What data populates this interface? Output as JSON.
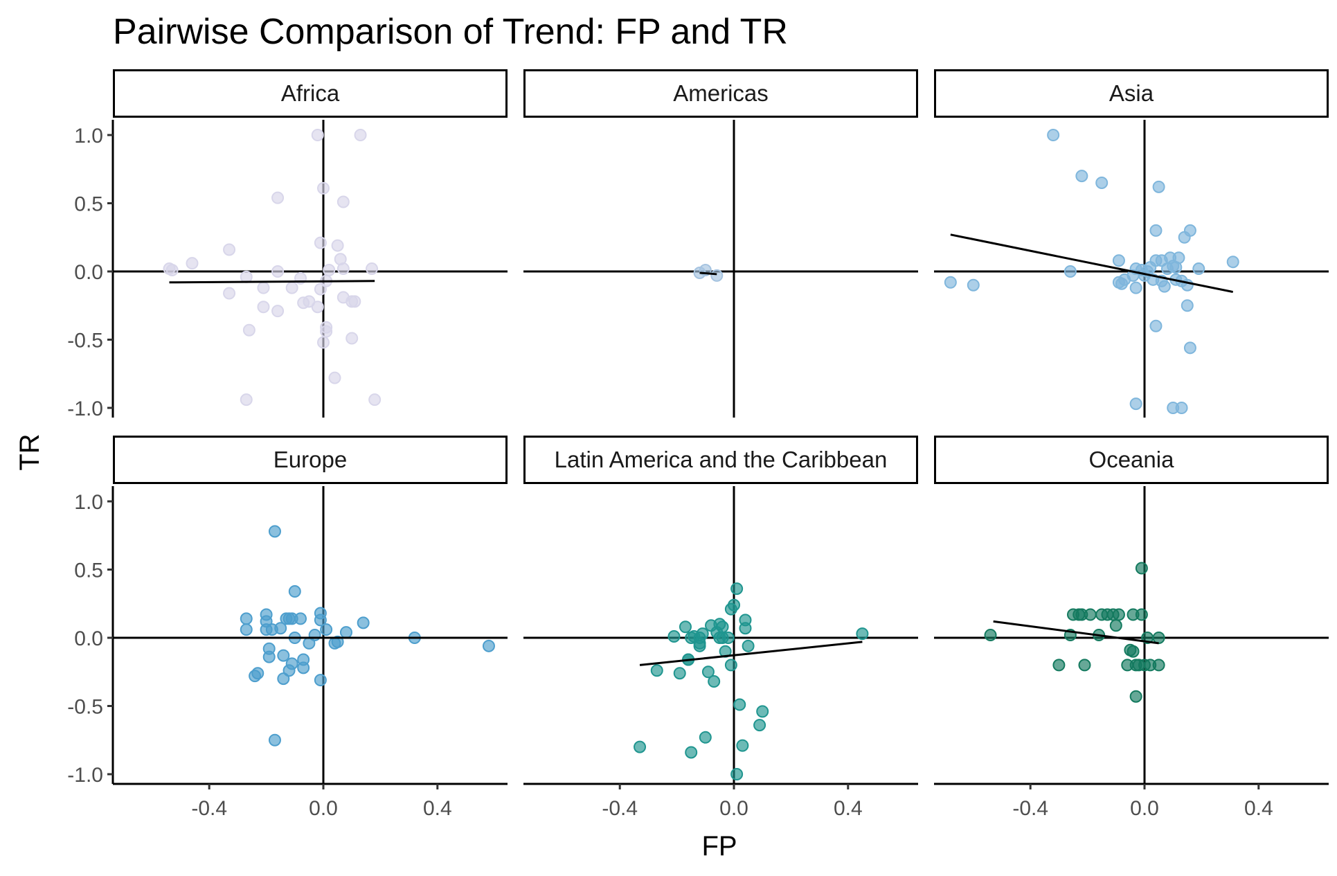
{
  "chart_data": {
    "type": "scatter",
    "title": "Pairwise Comparison of Trend: FP and TR",
    "xlabel": "FP",
    "ylabel": "TR",
    "xlim": [
      -0.74,
      0.64
    ],
    "ylim": [
      -1.1,
      1.1
    ],
    "x_ticks": [
      {
        "value": -0.4,
        "label": "-0.4"
      },
      {
        "value": 0.0,
        "label": "0.0"
      },
      {
        "value": 0.4,
        "label": "0.4"
      }
    ],
    "y_ticks": [
      {
        "value": 1.0,
        "label": "1.0"
      },
      {
        "value": 0.5,
        "label": "0.5"
      },
      {
        "value": 0.0,
        "label": "0.0"
      },
      {
        "value": -0.5,
        "label": "-0.5"
      },
      {
        "value": -1.0,
        "label": "-1.0"
      }
    ],
    "grid": false,
    "panels": [
      {
        "name": "Africa",
        "color": "#d8d6ea",
        "fit": [
          [
            -0.54,
            -0.08
          ],
          [
            0.18,
            -0.07
          ]
        ],
        "points": [
          [
            -0.54,
            0.02
          ],
          [
            -0.53,
            0.01
          ],
          [
            -0.46,
            0.06
          ],
          [
            -0.33,
            0.16
          ],
          [
            -0.33,
            -0.16
          ],
          [
            -0.27,
            -0.04
          ],
          [
            -0.26,
            -0.43
          ],
          [
            -0.27,
            -0.94
          ],
          [
            -0.21,
            -0.12
          ],
          [
            -0.21,
            -0.26
          ],
          [
            -0.16,
            0.54
          ],
          [
            -0.16,
            0.0
          ],
          [
            -0.16,
            -0.29
          ],
          [
            -0.11,
            -0.12
          ],
          [
            -0.08,
            -0.05
          ],
          [
            -0.07,
            -0.23
          ],
          [
            -0.05,
            -0.22
          ],
          [
            -0.02,
            -0.26
          ],
          [
            -0.02,
            1.0
          ],
          [
            -0.01,
            -0.13
          ],
          [
            -0.01,
            0.21
          ],
          [
            0.0,
            0.61
          ],
          [
            0.0,
            -0.52
          ],
          [
            0.01,
            -0.41
          ],
          [
            0.01,
            -0.44
          ],
          [
            0.01,
            -0.07
          ],
          [
            0.02,
            0.01
          ],
          [
            0.04,
            -0.78
          ],
          [
            0.05,
            0.19
          ],
          [
            0.06,
            0.09
          ],
          [
            0.07,
            0.02
          ],
          [
            0.07,
            -0.19
          ],
          [
            0.07,
            0.51
          ],
          [
            0.1,
            -0.22
          ],
          [
            0.1,
            -0.49
          ],
          [
            0.11,
            -0.22
          ],
          [
            0.13,
            1.0
          ],
          [
            0.17,
            0.02
          ],
          [
            0.18,
            -0.94
          ]
        ]
      },
      {
        "name": "Americas",
        "color": "#a5c3e0",
        "fit": [
          [
            -0.12,
            -0.01
          ],
          [
            -0.06,
            -0.02
          ]
        ],
        "points": [
          [
            -0.12,
            -0.01
          ],
          [
            -0.1,
            0.01
          ],
          [
            -0.06,
            -0.03
          ]
        ]
      },
      {
        "name": "Asia",
        "color": "#7fb6dc",
        "fit": [
          [
            -0.68,
            0.27
          ],
          [
            0.31,
            -0.15
          ]
        ],
        "points": [
          [
            -0.68,
            -0.08
          ],
          [
            -0.6,
            -0.1
          ],
          [
            -0.32,
            1.0
          ],
          [
            -0.26,
            0.0
          ],
          [
            -0.22,
            0.7
          ],
          [
            -0.15,
            0.65
          ],
          [
            -0.09,
            0.08
          ],
          [
            -0.09,
            -0.08
          ],
          [
            -0.08,
            -0.09
          ],
          [
            -0.07,
            -0.06
          ],
          [
            -0.04,
            -0.03
          ],
          [
            -0.03,
            0.02
          ],
          [
            -0.03,
            -0.12
          ],
          [
            -0.03,
            -0.97
          ],
          [
            -0.01,
            0.01
          ],
          [
            0.0,
            -0.03
          ],
          [
            0.01,
            0.0
          ],
          [
            0.02,
            0.03
          ],
          [
            0.03,
            -0.06
          ],
          [
            0.04,
            0.08
          ],
          [
            0.04,
            0.3
          ],
          [
            0.04,
            -0.4
          ],
          [
            0.05,
            0.62
          ],
          [
            0.06,
            -0.07
          ],
          [
            0.06,
            0.08
          ],
          [
            0.07,
            -0.11
          ],
          [
            0.08,
            0.02
          ],
          [
            0.09,
            0.1
          ],
          [
            0.1,
            0.04
          ],
          [
            0.1,
            -1.0
          ],
          [
            0.11,
            0.03
          ],
          [
            0.11,
            -0.06
          ],
          [
            0.12,
            0.1
          ],
          [
            0.13,
            -0.07
          ],
          [
            0.13,
            -1.0
          ],
          [
            0.14,
            0.25
          ],
          [
            0.15,
            -0.1
          ],
          [
            0.15,
            -0.25
          ],
          [
            0.16,
            0.3
          ],
          [
            0.16,
            -0.56
          ],
          [
            0.19,
            0.02
          ],
          [
            0.31,
            0.07
          ]
        ]
      },
      {
        "name": "Europe",
        "color": "#4d9ecd",
        "fit": [
          [
            -0.27,
            0.0
          ],
          [
            0.58,
            0.0
          ]
        ],
        "points": [
          [
            -0.27,
            0.14
          ],
          [
            -0.27,
            0.06
          ],
          [
            -0.24,
            -0.28
          ],
          [
            -0.23,
            -0.26
          ],
          [
            -0.2,
            0.17
          ],
          [
            -0.2,
            0.12
          ],
          [
            -0.2,
            0.06
          ],
          [
            -0.19,
            -0.08
          ],
          [
            -0.19,
            -0.14
          ],
          [
            -0.18,
            0.06
          ],
          [
            -0.17,
            0.78
          ],
          [
            -0.17,
            -0.75
          ],
          [
            -0.15,
            0.07
          ],
          [
            -0.14,
            -0.13
          ],
          [
            -0.14,
            -0.3
          ],
          [
            -0.13,
            0.14
          ],
          [
            -0.12,
            0.14
          ],
          [
            -0.12,
            -0.24
          ],
          [
            -0.11,
            0.14
          ],
          [
            -0.11,
            -0.19
          ],
          [
            -0.1,
            0.34
          ],
          [
            -0.1,
            0.0
          ],
          [
            -0.08,
            0.14
          ],
          [
            -0.07,
            -0.22
          ],
          [
            -0.07,
            -0.16
          ],
          [
            -0.05,
            -0.04
          ],
          [
            -0.03,
            0.02
          ],
          [
            -0.01,
            0.18
          ],
          [
            -0.01,
            0.13
          ],
          [
            -0.01,
            -0.31
          ],
          [
            0.01,
            0.06
          ],
          [
            0.04,
            -0.04
          ],
          [
            0.05,
            -0.03
          ],
          [
            0.08,
            0.04
          ],
          [
            0.14,
            0.11
          ],
          [
            0.32,
            0.0
          ],
          [
            0.58,
            -0.06
          ]
        ]
      },
      {
        "name": "Latin America and the Caribbean",
        "color": "#1f958f",
        "fit": [
          [
            -0.33,
            -0.2
          ],
          [
            0.45,
            -0.03
          ]
        ],
        "points": [
          [
            -0.33,
            -0.8
          ],
          [
            -0.27,
            -0.24
          ],
          [
            -0.21,
            0.01
          ],
          [
            -0.19,
            -0.26
          ],
          [
            -0.17,
            0.08
          ],
          [
            -0.16,
            -0.16
          ],
          [
            -0.16,
            -0.16
          ],
          [
            -0.15,
            -0.84
          ],
          [
            -0.15,
            0.0
          ],
          [
            -0.14,
            0.01
          ],
          [
            -0.12,
            0.0
          ],
          [
            -0.12,
            -0.04
          ],
          [
            -0.12,
            -0.06
          ],
          [
            -0.11,
            0.03
          ],
          [
            -0.1,
            -0.73
          ],
          [
            -0.09,
            -0.25
          ],
          [
            -0.08,
            0.09
          ],
          [
            -0.07,
            -0.32
          ],
          [
            -0.06,
            0.04
          ],
          [
            -0.05,
            0.1
          ],
          [
            -0.05,
            0.0
          ],
          [
            -0.04,
            0.08
          ],
          [
            -0.04,
            0.0
          ],
          [
            -0.03,
            -0.1
          ],
          [
            -0.02,
            0.0
          ],
          [
            -0.01,
            0.21
          ],
          [
            -0.01,
            -0.2
          ],
          [
            0.0,
            0.24
          ],
          [
            0.01,
            0.36
          ],
          [
            0.01,
            -1.0
          ],
          [
            0.02,
            -0.49
          ],
          [
            0.03,
            -0.79
          ],
          [
            0.04,
            0.13
          ],
          [
            0.04,
            0.07
          ],
          [
            0.05,
            -0.06
          ],
          [
            0.09,
            -0.64
          ],
          [
            0.1,
            -0.54
          ],
          [
            0.45,
            0.03
          ]
        ]
      },
      {
        "name": "Oceania",
        "color": "#147a5f",
        "fit": [
          [
            -0.53,
            0.12
          ],
          [
            0.05,
            -0.04
          ]
        ],
        "points": [
          [
            -0.54,
            0.02
          ],
          [
            -0.3,
            -0.2
          ],
          [
            -0.26,
            0.02
          ],
          [
            -0.25,
            0.17
          ],
          [
            -0.23,
            0.17
          ],
          [
            -0.22,
            0.17
          ],
          [
            -0.21,
            -0.2
          ],
          [
            -0.19,
            0.17
          ],
          [
            -0.16,
            0.02
          ],
          [
            -0.15,
            0.17
          ],
          [
            -0.13,
            0.17
          ],
          [
            -0.11,
            0.17
          ],
          [
            -0.1,
            0.09
          ],
          [
            -0.09,
            0.17
          ],
          [
            -0.06,
            -0.2
          ],
          [
            -0.05,
            -0.09
          ],
          [
            -0.04,
            0.17
          ],
          [
            -0.04,
            -0.1
          ],
          [
            -0.03,
            -0.2
          ],
          [
            -0.03,
            -0.43
          ],
          [
            -0.02,
            -0.2
          ],
          [
            -0.01,
            0.51
          ],
          [
            -0.01,
            0.17
          ],
          [
            0.0,
            -0.2
          ],
          [
            0.01,
            0.0
          ],
          [
            0.02,
            -0.2
          ],
          [
            0.05,
            0.0
          ],
          [
            0.05,
            -0.2
          ]
        ]
      }
    ]
  }
}
